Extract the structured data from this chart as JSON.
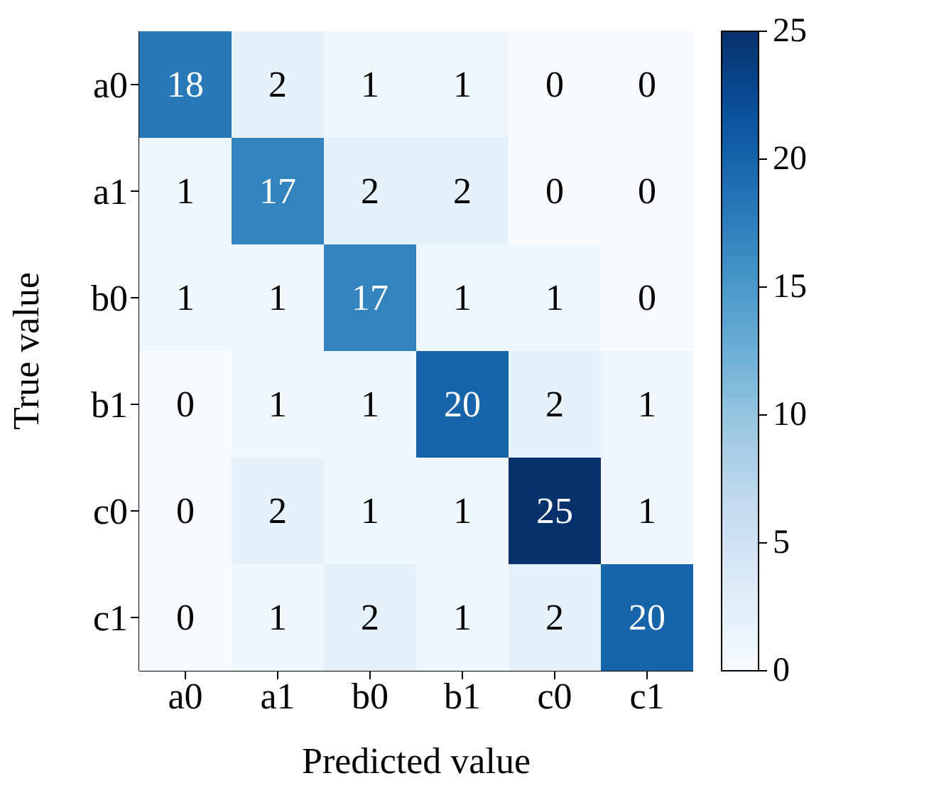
{
  "chart_data": {
    "type": "heatmap",
    "xlabel": "Predicted value",
    "ylabel": "True value",
    "categories": [
      "a0",
      "a1",
      "b0",
      "b1",
      "c0",
      "c1"
    ],
    "y_categories": [
      "a0",
      "a1",
      "b0",
      "b1",
      "c0",
      "c1"
    ],
    "cells": [
      [
        18,
        2,
        1,
        1,
        0,
        0
      ],
      [
        1,
        17,
        2,
        2,
        0,
        0
      ],
      [
        1,
        1,
        17,
        1,
        1,
        0
      ],
      [
        0,
        1,
        1,
        20,
        2,
        1
      ],
      [
        0,
        2,
        1,
        1,
        25,
        1
      ],
      [
        0,
        1,
        2,
        1,
        2,
        20
      ]
    ],
    "clim": [
      0,
      25
    ],
    "cticks": [
      0,
      5,
      10,
      15,
      20,
      25
    ],
    "data_labels": true
  }
}
